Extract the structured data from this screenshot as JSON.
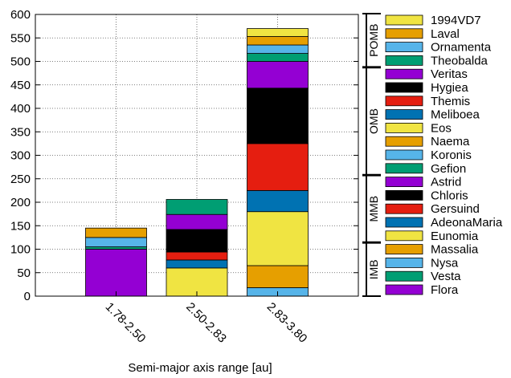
{
  "chart_data": {
    "type": "bar",
    "stacked": true,
    "title": "",
    "xlabel": "Semi-major axis range [au]",
    "ylabel": "",
    "ylim": [
      0,
      600
    ],
    "yticks": [
      0,
      50,
      100,
      150,
      200,
      250,
      300,
      350,
      400,
      450,
      500,
      550,
      600
    ],
    "grid": true,
    "legend_position": "right",
    "categories": [
      "1.78-2.50",
      "2.50-2.83",
      "2.83-3.80"
    ],
    "series": [
      {
        "name": "Flora",
        "color": "#9400d3",
        "values": [
          100,
          0,
          0
        ]
      },
      {
        "name": "Vesta",
        "color": "#009e73",
        "values": [
          5,
          0,
          0
        ]
      },
      {
        "name": "Nysa",
        "color": "#56b4e9",
        "values": [
          20,
          0,
          18
        ]
      },
      {
        "name": "Massalia",
        "color": "#e69f00",
        "values": [
          20,
          0,
          47
        ]
      },
      {
        "name": "Eunomia",
        "color": "#f0e442",
        "values": [
          0,
          60,
          115
        ]
      },
      {
        "name": "AdeonaMaria",
        "color": "#0072b2",
        "values": [
          0,
          17,
          45
        ]
      },
      {
        "name": "Gersuind",
        "color": "#e51e10",
        "values": [
          0,
          17,
          100
        ]
      },
      {
        "name": "Chloris",
        "color": "#000000",
        "values": [
          0,
          48,
          118
        ]
      },
      {
        "name": "Astrid",
        "color": "#9400d3",
        "values": [
          0,
          32,
          57
        ]
      },
      {
        "name": "Gefion",
        "color": "#009e73",
        "values": [
          0,
          32,
          17
        ]
      },
      {
        "name": "Koronis",
        "color": "#56b4e9",
        "values": [
          0,
          0,
          18
        ]
      },
      {
        "name": "Naema",
        "color": "#e69f00",
        "values": [
          0,
          0,
          18
        ]
      },
      {
        "name": "Eos",
        "color": "#f0e442",
        "values": [
          0,
          0,
          17
        ]
      },
      {
        "name": "Meliboea",
        "color": "#0072b2",
        "values": [
          0,
          0,
          0
        ]
      },
      {
        "name": "Themis",
        "color": "#e51e10",
        "values": [
          0,
          0,
          0
        ]
      },
      {
        "name": "Hygiea",
        "color": "#000000",
        "values": [
          0,
          0,
          0
        ]
      },
      {
        "name": "Veritas",
        "color": "#9400d3",
        "values": [
          0,
          0,
          0
        ]
      },
      {
        "name": "Theobalda",
        "color": "#009e73",
        "values": [
          0,
          0,
          0
        ]
      },
      {
        "name": "Ornamenta",
        "color": "#56b4e9",
        "values": [
          0,
          0,
          0
        ]
      },
      {
        "name": "Laval",
        "color": "#e69f00",
        "values": [
          0,
          0,
          0
        ]
      },
      {
        "name": "1994VD7",
        "color": "#f0e442",
        "values": [
          0,
          0,
          0
        ]
      }
    ],
    "region_brackets": [
      {
        "label": "IMB",
        "series_from": "Flora",
        "series_to": "Massalia"
      },
      {
        "label": "MMB",
        "series_from": "Eunomia",
        "series_to": "Astrid"
      },
      {
        "label": "OMB",
        "series_from": "Gefion",
        "series_to": "Veritas"
      },
      {
        "label": "POMB",
        "series_from": "Theobalda",
        "series_to": "1994VD7"
      }
    ]
  }
}
